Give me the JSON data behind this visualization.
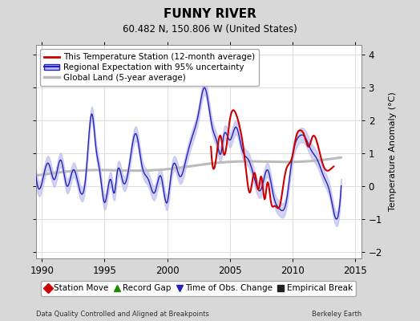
{
  "title": "FUNNY RIVER",
  "subtitle": "60.482 N, 150.806 W (United States)",
  "ylabel": "Temperature Anomaly (°C)",
  "footer_left": "Data Quality Controlled and Aligned at Breakpoints",
  "footer_right": "Berkeley Earth",
  "xlim": [
    1989.5,
    2015.5
  ],
  "ylim": [
    -2.2,
    4.3
  ],
  "yticks": [
    -2,
    -1,
    0,
    1,
    2,
    3,
    4
  ],
  "xticks": [
    1990,
    1995,
    2000,
    2005,
    2010,
    2015
  ],
  "bg_color": "#d8d8d8",
  "plot_bg_color": "#ffffff",
  "grid_color": "#cccccc",
  "regional_color": "#2222bb",
  "regional_fill_color": "#bbbbee",
  "station_color": "#cc0000",
  "global_color": "#bbbbbb",
  "legend_items": [
    {
      "label": "This Temperature Station (12-month average)",
      "color": "#cc0000",
      "lw": 2
    },
    {
      "label": "Regional Expectation with 95% uncertainty",
      "color": "#2222bb",
      "lw": 2
    },
    {
      "label": "Global Land (5-year average)",
      "color": "#bbbbbb",
      "lw": 2
    }
  ],
  "bottom_legend": [
    {
      "label": "Station Move",
      "color": "#cc0000",
      "marker": "D"
    },
    {
      "label": "Record Gap",
      "color": "#228800",
      "marker": "^"
    },
    {
      "label": "Time of Obs. Change",
      "color": "#2222bb",
      "marker": "v"
    },
    {
      "label": "Empirical Break",
      "color": "#222222",
      "marker": "s"
    }
  ]
}
